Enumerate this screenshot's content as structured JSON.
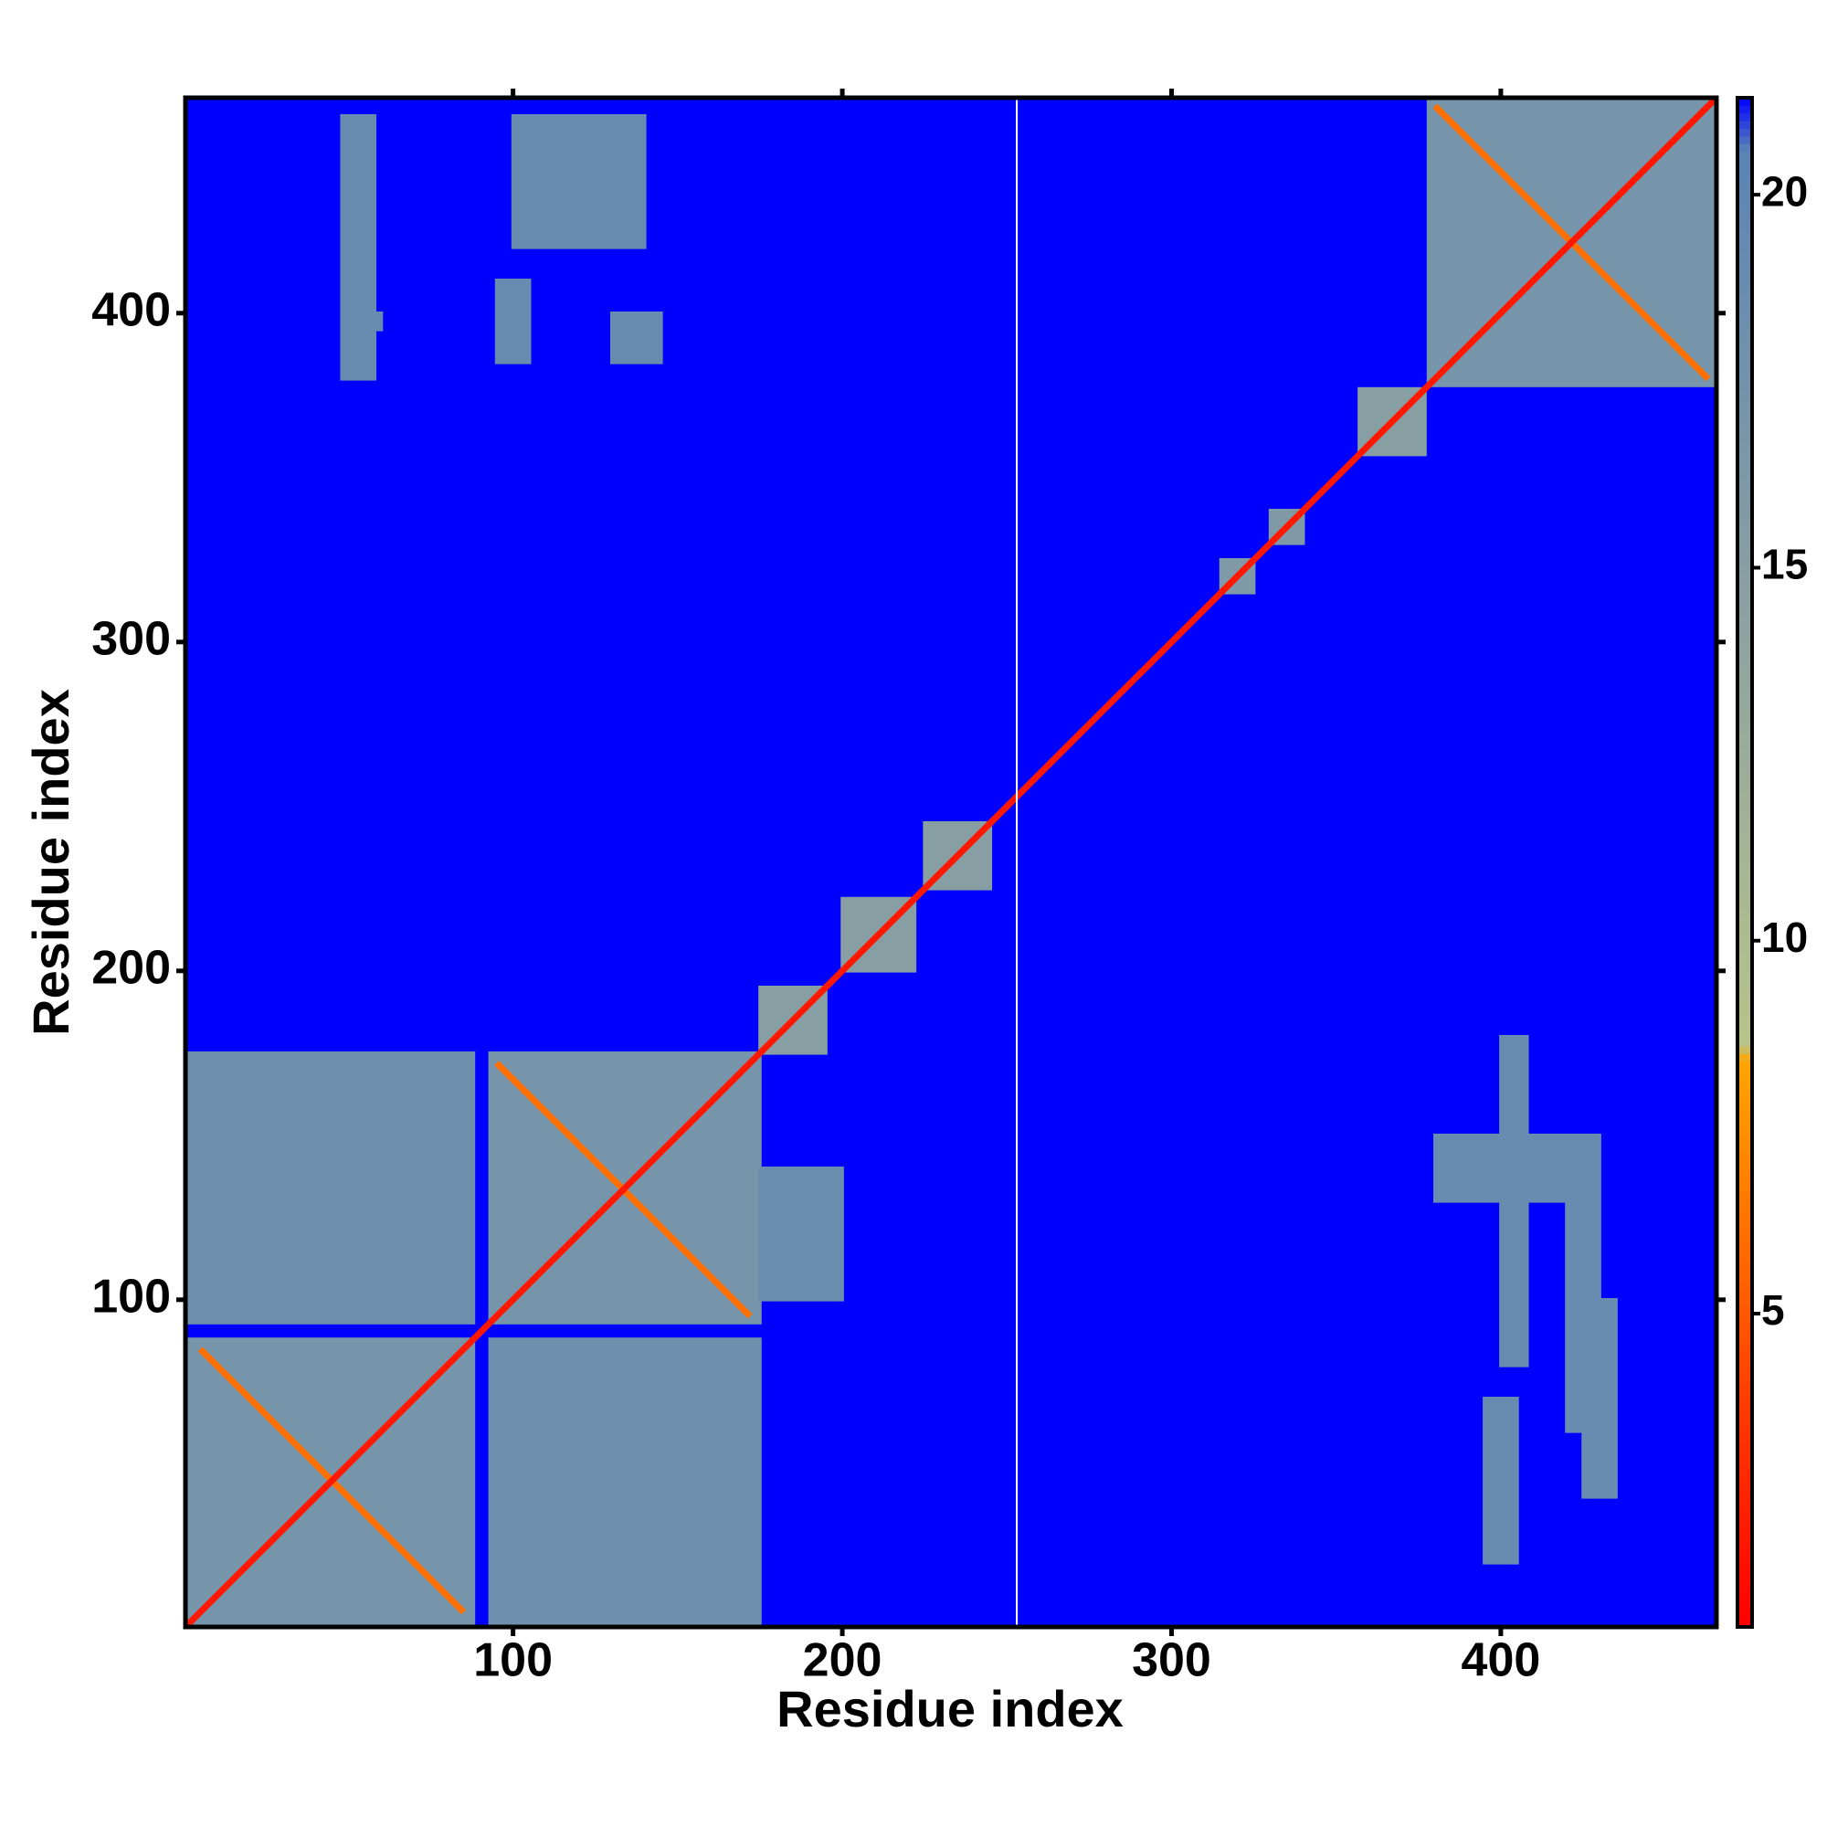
{
  "chart_data": {
    "type": "heatmap",
    "x_label": "Residue index",
    "y_label": "Residue index",
    "xlim": [
      0.5,
      465.5
    ],
    "ylim": [
      0.5,
      465.5
    ],
    "xticks": [
      100,
      200,
      300,
      400
    ],
    "yticks": [
      100,
      200,
      300,
      400
    ],
    "colorbar": {
      "lim": [
        0.8,
        21.3
      ],
      "ticks": [
        5,
        10,
        15,
        20
      ],
      "stops": [
        [
          0.8,
          "#ff0000"
        ],
        [
          4,
          "#ff4000"
        ],
        [
          8.4,
          "#ffa500"
        ],
        [
          8.6,
          "#b8c48a"
        ],
        [
          14,
          "#8fa3a0"
        ],
        [
          20.6,
          "#5b84b5"
        ],
        [
          21.3,
          "#0000ff"
        ]
      ]
    },
    "background_value": 21.3,
    "regions": [
      [
        1,
        88,
        1,
        88,
        17
      ],
      [
        93,
        175,
        93,
        175,
        17
      ],
      [
        1,
        88,
        93,
        175,
        18
      ],
      [
        93,
        175,
        1,
        88,
        18
      ],
      [
        175,
        200,
        100,
        140,
        18.5
      ],
      [
        378,
        465,
        378,
        465,
        17
      ],
      [
        175,
        195,
        175,
        195,
        15
      ],
      [
        200,
        222,
        200,
        222,
        15
      ],
      [
        225,
        245,
        225,
        245,
        15
      ],
      [
        357,
        377,
        357,
        377,
        15
      ],
      [
        315,
        325,
        315,
        325,
        16
      ],
      [
        330,
        340,
        330,
        340,
        16
      ],
      [
        48,
        58,
        380,
        460,
        19
      ],
      [
        100,
        140,
        420,
        460,
        19
      ],
      [
        130,
        145,
        385,
        400,
        19
      ],
      [
        50,
        60,
        395,
        400,
        19
      ],
      [
        95,
        105,
        385,
        410,
        19
      ],
      [
        400,
        408,
        80,
        180,
        19
      ],
      [
        420,
        430,
        60,
        150,
        19
      ],
      [
        380,
        420,
        130,
        150,
        19
      ],
      [
        425,
        435,
        40,
        100,
        19
      ],
      [
        395,
        405,
        20,
        70,
        19
      ]
    ],
    "segments": [
      [
        5,
        85,
        85,
        5,
        6
      ],
      [
        95,
        172,
        172,
        95,
        6
      ],
      [
        380,
        463,
        463,
        380,
        6
      ],
      [
        1,
        1,
        465,
        465,
        2
      ]
    ],
    "null_columns": [
      253
    ]
  }
}
